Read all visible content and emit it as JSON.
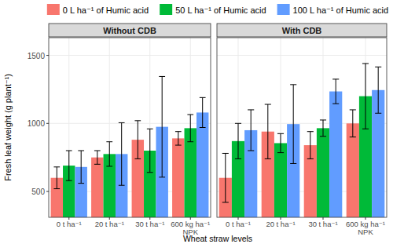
{
  "chart_data": {
    "type": "bar",
    "y_label": "Fresh leaf weight (g plant⁻¹)",
    "x_label": "Wheat straw levels",
    "legend": "top",
    "grid": true,
    "ylim": [
      310,
      1630
    ],
    "yticks": [
      500,
      1000,
      1500
    ],
    "categories": [
      "0 t ha⁻¹",
      "20 t ha⁻¹",
      "30 t ha⁻¹",
      "600 kg ha⁻¹\nNPK"
    ],
    "series": [
      {
        "name": "0 L ha⁻¹ of Humic acid",
        "color": "#F8766D"
      },
      {
        "name": "50 L ha⁻¹ of Humic acid",
        "color": "#00BA38"
      },
      {
        "name": "100 L ha⁻¹ of Humic acid",
        "color": "#619CFF"
      }
    ],
    "panels": [
      {
        "title": "Without CDB",
        "series": [
          {
            "values": [
              600,
              750,
              880,
              890
            ],
            "errors": [
              80,
              50,
              140,
              50
            ]
          },
          {
            "values": [
              690,
              775,
              800,
              965
            ],
            "errors": [
              110,
              90,
              160,
              100
            ]
          },
          {
            "values": [
              680,
              775,
              975,
              1080
            ],
            "errors": [
              120,
              230,
              370,
              110
            ]
          }
        ]
      },
      {
        "title": "With CDB",
        "series": [
          {
            "values": [
              600,
              940,
              840,
              1000
            ],
            "errors": [
              180,
              200,
              100,
              100
            ]
          },
          {
            "values": [
              870,
              855,
              965,
              1200
            ],
            "errors": [
              130,
              70,
              60,
              240
            ]
          },
          {
            "values": [
              950,
              995,
              1235,
              1245
            ],
            "errors": [
              150,
              290,
              90,
              170
            ]
          }
        ]
      }
    ]
  }
}
